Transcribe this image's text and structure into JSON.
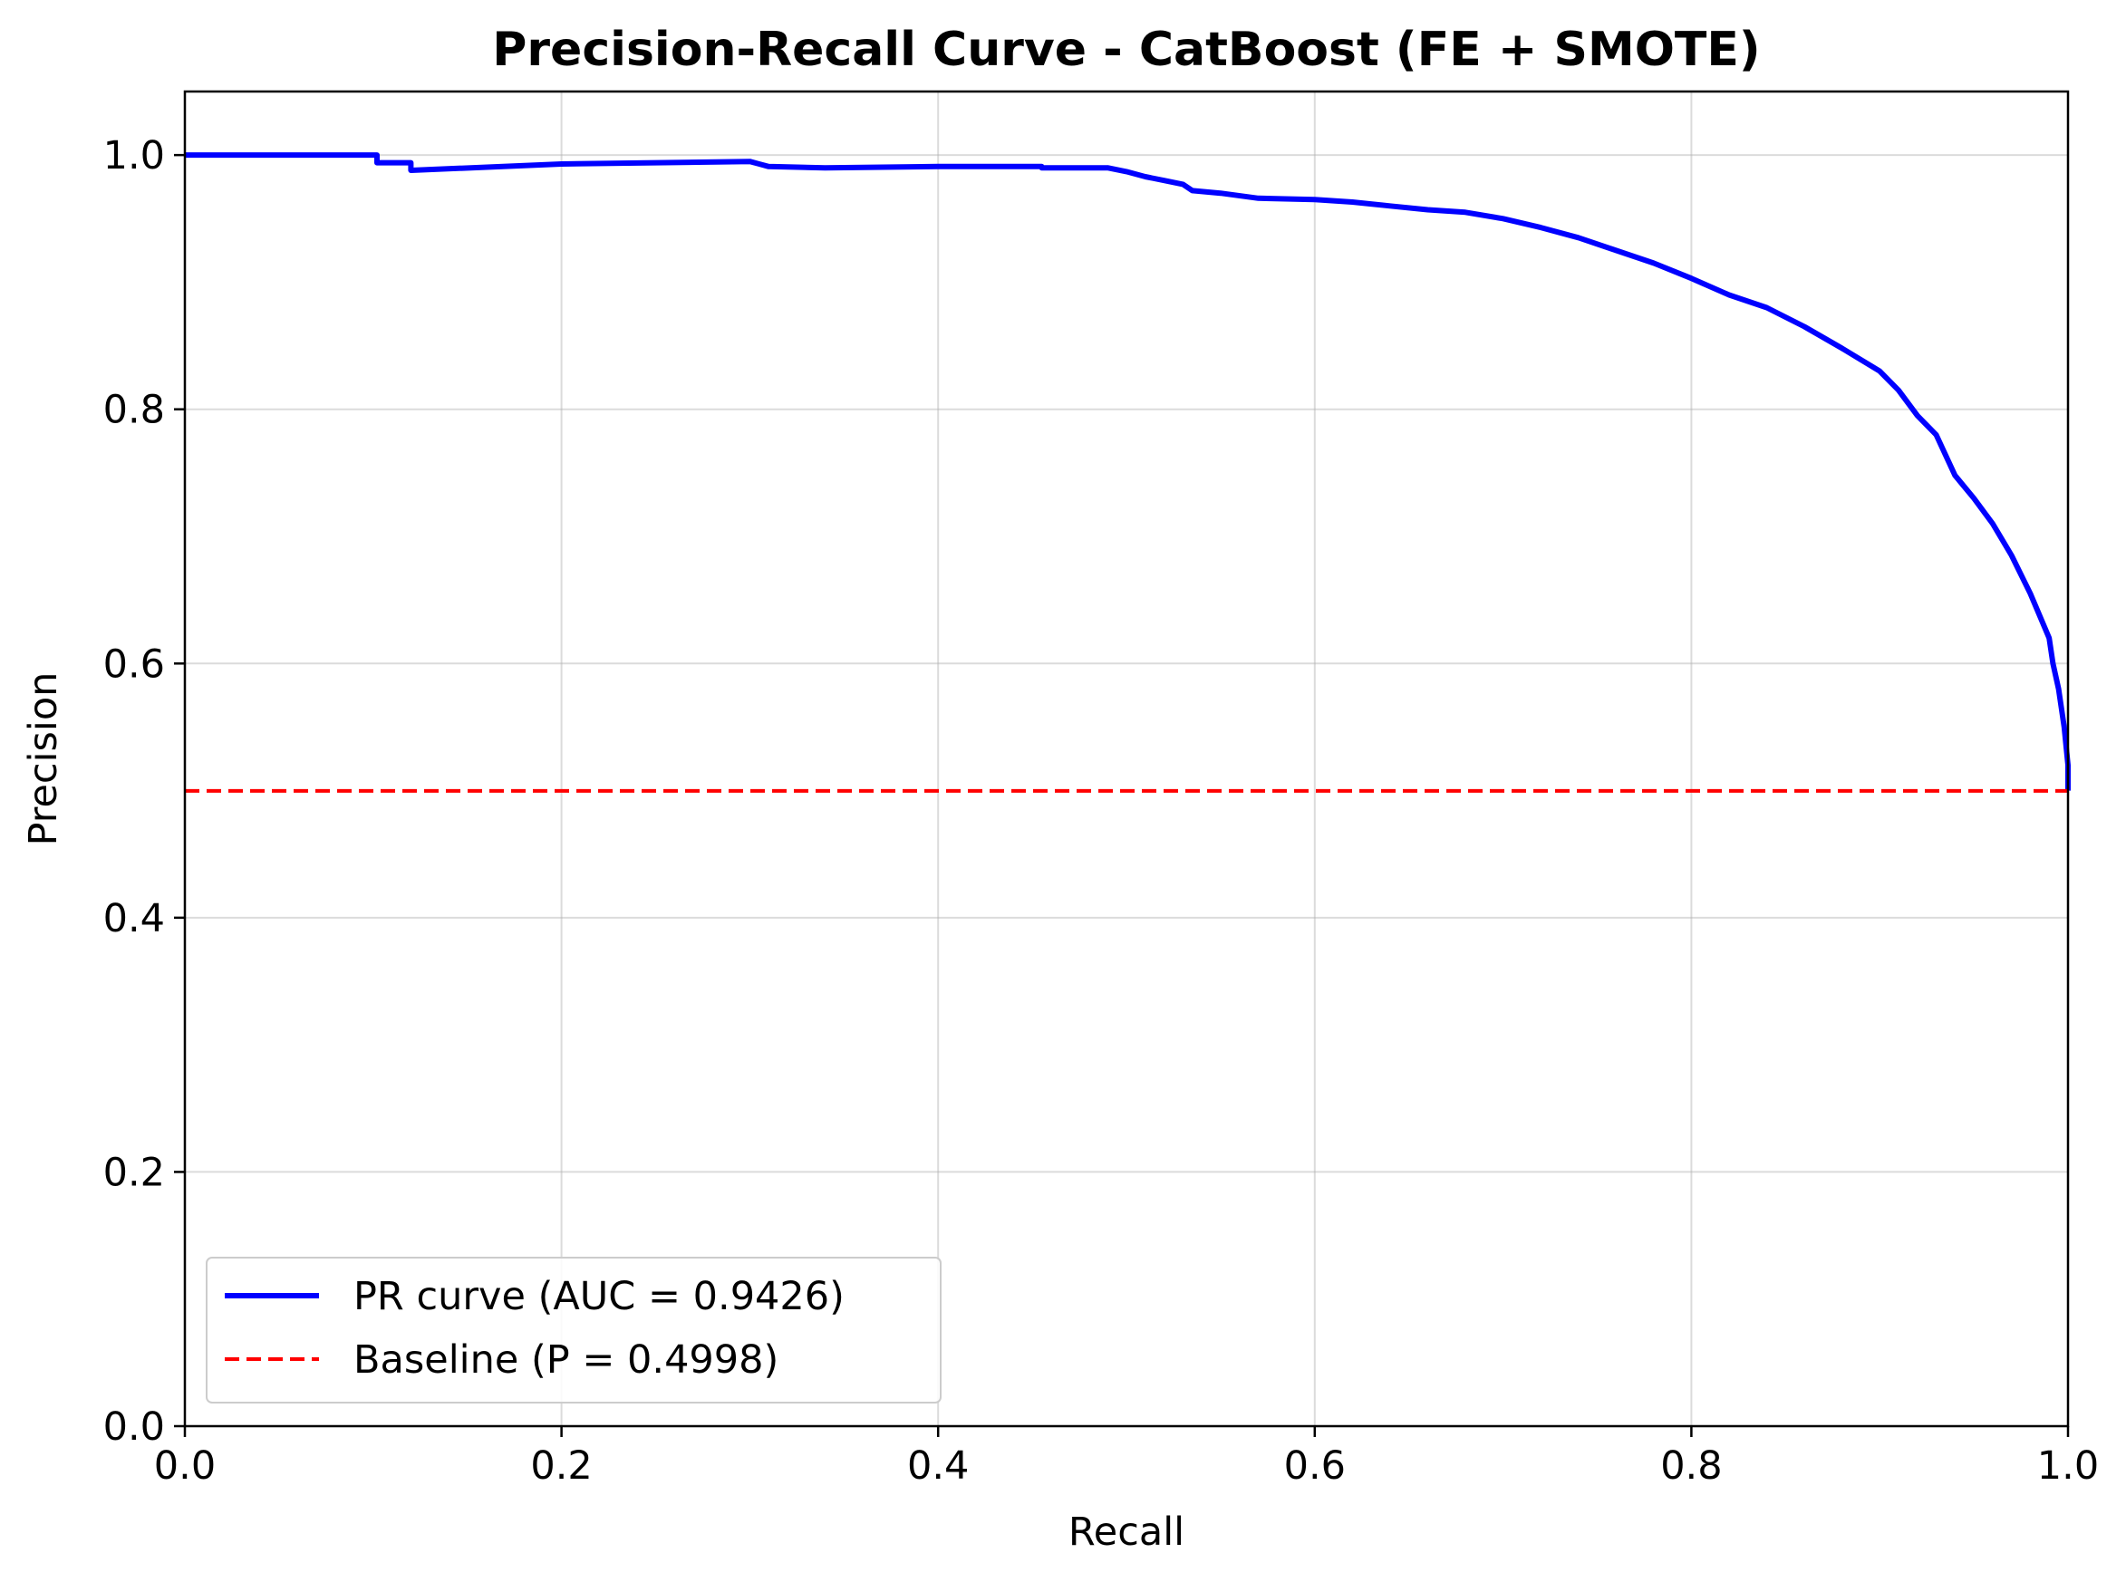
{
  "chart_data": {
    "type": "line",
    "title": "Precision-Recall Curve - CatBoost (FE + SMOTE)",
    "xlabel": "Recall",
    "ylabel": "Precision",
    "xlim": [
      0.0,
      1.0
    ],
    "ylim": [
      0.0,
      1.05
    ],
    "xticks": [
      "0.0",
      "0.2",
      "0.4",
      "0.6",
      "0.8",
      "1.0"
    ],
    "yticks": [
      "0.0",
      "0.2",
      "0.4",
      "0.6",
      "0.8",
      "1.0"
    ],
    "grid": true,
    "legend_position": "lower-left",
    "series": [
      {
        "name": "PR curve (AUC = 0.9426)",
        "color": "#0000ff",
        "style": "solid",
        "x": [
          0.0,
          0.102,
          0.102,
          0.12,
          0.12,
          0.2,
          0.3,
          0.305,
          0.31,
          0.31,
          0.34,
          0.34,
          0.4,
          0.455,
          0.455,
          0.49,
          0.5,
          0.51,
          0.52,
          0.53,
          0.535,
          0.55,
          0.57,
          0.6,
          0.62,
          0.64,
          0.66,
          0.68,
          0.7,
          0.72,
          0.74,
          0.76,
          0.78,
          0.8,
          0.82,
          0.84,
          0.86,
          0.88,
          0.9,
          0.91,
          0.92,
          0.93,
          0.94,
          0.95,
          0.96,
          0.97,
          0.98,
          0.99,
          0.992,
          0.995,
          0.998,
          1.0,
          1.0
        ],
        "y": [
          1.0,
          1.0,
          0.994,
          0.994,
          0.988,
          0.993,
          0.995,
          0.993,
          0.991,
          0.991,
          0.99,
          0.99,
          0.991,
          0.991,
          0.99,
          0.99,
          0.987,
          0.983,
          0.98,
          0.977,
          0.972,
          0.97,
          0.966,
          0.965,
          0.963,
          0.96,
          0.957,
          0.955,
          0.95,
          0.943,
          0.935,
          0.925,
          0.915,
          0.903,
          0.89,
          0.88,
          0.865,
          0.848,
          0.83,
          0.815,
          0.795,
          0.78,
          0.748,
          0.73,
          0.71,
          0.685,
          0.655,
          0.62,
          0.6,
          0.58,
          0.55,
          0.52,
          0.5
        ]
      },
      {
        "name": "Baseline (P = 0.4998)",
        "color": "#ff0000",
        "style": "dashed",
        "x": [
          0.0,
          1.0
        ],
        "y": [
          0.4998,
          0.4998
        ]
      }
    ]
  }
}
